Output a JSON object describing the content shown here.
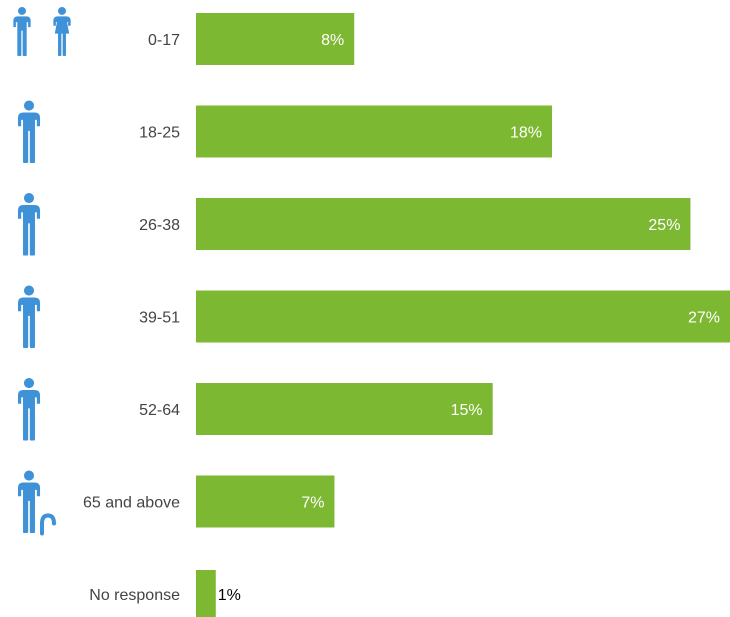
{
  "chart_data": {
    "type": "bar",
    "orientation": "horizontal",
    "categories": [
      "0-17",
      "18-25",
      "26-38",
      "39-51",
      "52-64",
      "65 and above",
      "No response"
    ],
    "values": [
      8,
      18,
      25,
      27,
      15,
      7,
      1
    ],
    "value_labels": [
      "8%",
      "18%",
      "25%",
      "27%",
      "15%",
      "7%",
      "1%"
    ],
    "icons": [
      "children-icon",
      "adult-icon",
      "adult-icon",
      "adult-icon",
      "adult-icon",
      "elderly-with-cane-icon",
      ""
    ],
    "xlim": [
      0,
      27
    ],
    "grid": false,
    "legend": "none"
  },
  "colors": {
    "bar": "#7db832",
    "icon": "#3f92d8",
    "label_inside": "#ffffff",
    "label_outside": "#000000",
    "category_text": "#444444"
  }
}
